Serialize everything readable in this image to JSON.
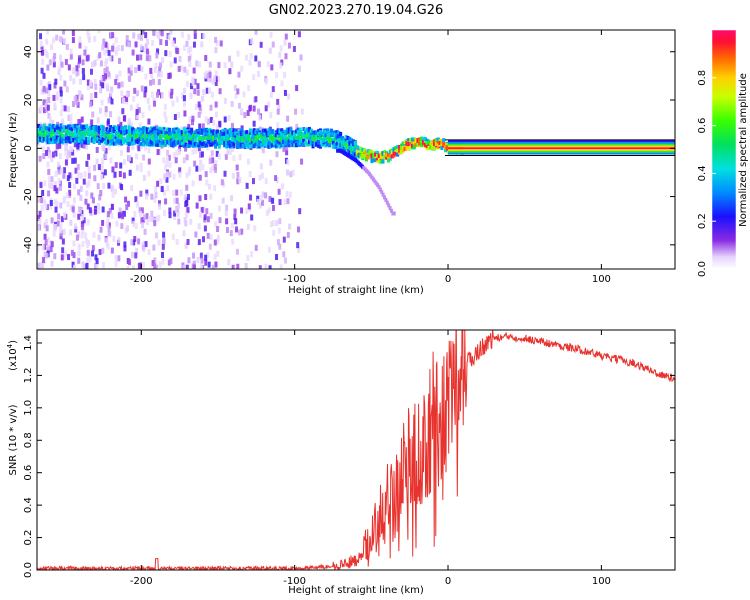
{
  "title": "GN02.2023.270.19.04.G26",
  "chart_data": [
    {
      "type": "heatmap",
      "xlabel": "Height of straight line (km)",
      "ylabel": "Frequency (Hz)",
      "xlim": [
        -268,
        148
      ],
      "ylim": [
        -50,
        49
      ],
      "xticks": [
        -200,
        -100,
        0,
        100
      ],
      "yticks": [
        -40,
        -20,
        0,
        20,
        40
      ],
      "ridge_x": [
        -268,
        -250,
        -200,
        -150,
        -110,
        -95,
        -85,
        -75,
        -68,
        -60,
        -52,
        -45,
        -38,
        -30,
        -24,
        -18,
        -12,
        -8,
        -4,
        0,
        10,
        148
      ],
      "ridge_y": [
        6,
        6,
        5,
        4,
        4,
        5,
        4,
        4,
        2,
        -1,
        -3,
        -4,
        -3,
        0,
        2,
        3,
        1,
        2,
        2,
        0,
        0,
        0
      ],
      "branch_x": [
        -70,
        -60,
        -52,
        -45,
        -40,
        -36
      ],
      "branch_y": [
        -1,
        -5,
        -10,
        -16,
        -22,
        -27
      ],
      "colorbar": {
        "label": "Normalized spectral amplitude",
        "range": [
          0,
          1
        ],
        "ticks": [
          "0.0",
          "0.2",
          "0.4",
          "0.6",
          "0.8"
        ]
      },
      "grid": false
    },
    {
      "type": "line",
      "xlabel": "Height of straight line (km)",
      "ylabel": "SNR (10 * v/v)",
      "multiplier": "(x10",
      "multiplier_exp": "4",
      "multiplier_close": ")",
      "xlim": [
        -268,
        148
      ],
      "ylim": [
        0,
        1.48
      ],
      "xticks": [
        -200,
        -100,
        0,
        100
      ],
      "yticks": [
        "0.0",
        "0.2",
        "0.4",
        "0.6",
        "0.8",
        "1.0",
        "1.2",
        "1.4"
      ],
      "color": "#e8322d",
      "series": [
        {
          "x": [
            -268,
            -200,
            -120,
            -100,
            -80,
            -70,
            -60,
            -55,
            -50,
            -45,
            -40,
            -35,
            -30,
            -25,
            -20,
            -15,
            -10,
            -5,
            0,
            5,
            10,
            15,
            20,
            25,
            30,
            40,
            50,
            60,
            70,
            80,
            90,
            100,
            110,
            120,
            130,
            140,
            148
          ],
          "values": [
            0.01,
            0.01,
            0.01,
            0.01,
            0.02,
            0.03,
            0.06,
            0.12,
            0.2,
            0.35,
            0.5,
            0.55,
            0.65,
            0.7,
            0.72,
            0.8,
            0.9,
            0.95,
            1.0,
            1.15,
            1.25,
            1.3,
            1.35,
            1.4,
            1.43,
            1.44,
            1.43,
            1.41,
            1.39,
            1.37,
            1.35,
            1.32,
            1.3,
            1.28,
            1.24,
            1.2,
            1.18
          ]
        }
      ]
    }
  ]
}
